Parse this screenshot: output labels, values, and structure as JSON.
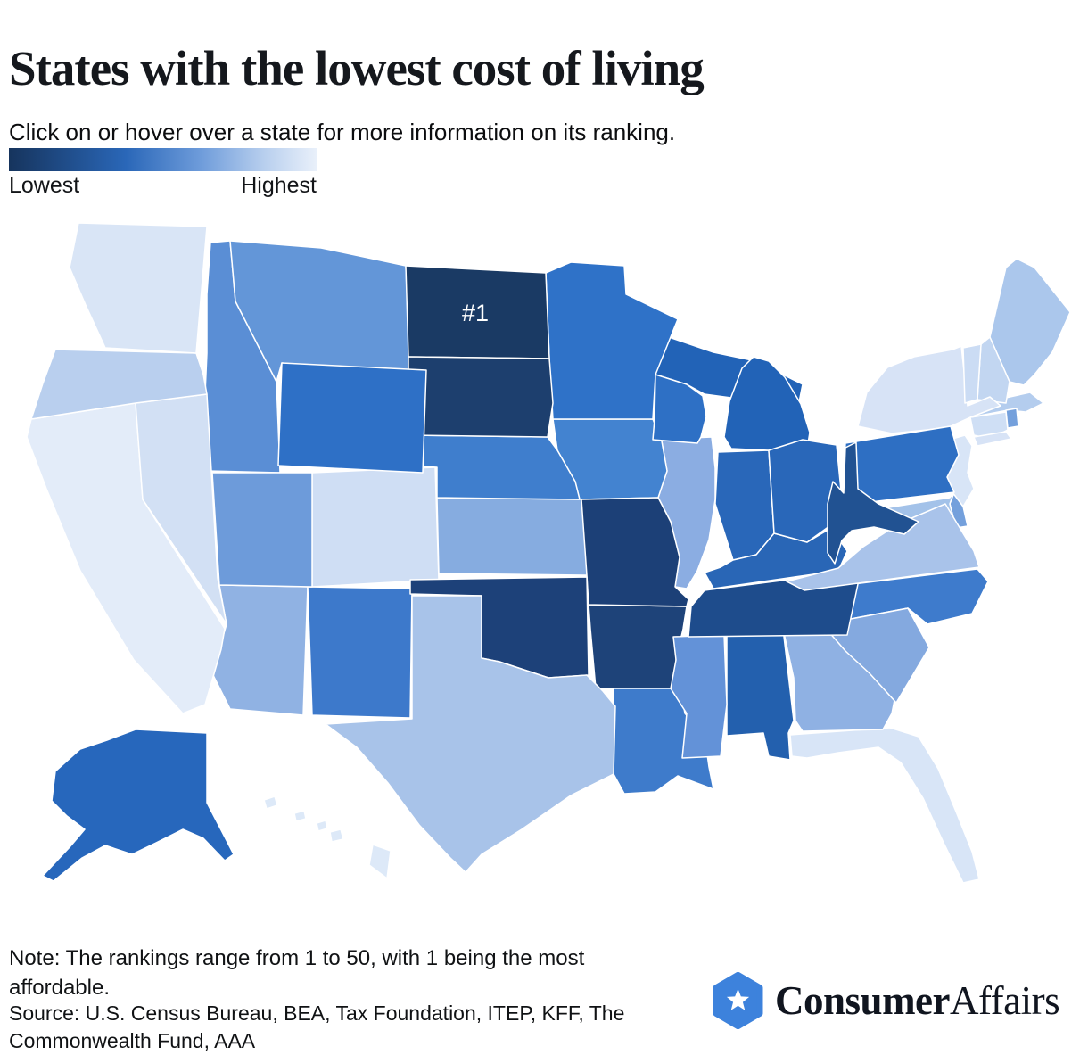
{
  "header": {
    "title": "States with the lowest cost of living",
    "subtitle": "Click on or hover over a state for more information on its ranking."
  },
  "legend": {
    "low_label": "Lowest",
    "high_label": "Highest",
    "gradient_stops": [
      "#16345d",
      "#2a67b8",
      "#6d9bda",
      "#b8cfee",
      "#e9f0fa"
    ]
  },
  "chart_data": {
    "type": "heatmap",
    "subtype": "us_state_choropleth",
    "title": "States with the lowest cost of living",
    "scale_note": "Rankings 1-50; darker blue = lower rank (more affordable), lighter = higher rank",
    "legend": {
      "low": "Lowest",
      "high": "Highest"
    },
    "highlight": {
      "state_id": "ND",
      "state_name": "North Dakota",
      "label": "#1",
      "text_color": "#ffffff"
    },
    "stroke_color": "#ffffff",
    "states": [
      {
        "id": "AL",
        "name": "Alabama",
        "fill": "#2360ae"
      },
      {
        "id": "AK",
        "name": "Alaska",
        "fill": "#2767bc"
      },
      {
        "id": "AZ",
        "name": "Arizona",
        "fill": "#90b2e3"
      },
      {
        "id": "AR",
        "name": "Arkansas",
        "fill": "#1e4379"
      },
      {
        "id": "CA",
        "name": "California",
        "fill": "#e3ecf9"
      },
      {
        "id": "CO",
        "name": "Colorado",
        "fill": "#cfdef4"
      },
      {
        "id": "CT",
        "name": "Connecticut",
        "fill": "#cfdff5"
      },
      {
        "id": "DE",
        "name": "Delaware",
        "fill": "#74a0dc"
      },
      {
        "id": "FL",
        "name": "Florida",
        "fill": "#d8e5f7"
      },
      {
        "id": "GA",
        "name": "Georgia",
        "fill": "#8fb1e3"
      },
      {
        "id": "HI",
        "name": "Hawaii",
        "fill": "#dde9f8"
      },
      {
        "id": "ID",
        "name": "Idaho",
        "fill": "#5a8ed5"
      },
      {
        "id": "IL",
        "name": "Illinois",
        "fill": "#8bade2"
      },
      {
        "id": "IN",
        "name": "Indiana",
        "fill": "#2967b9"
      },
      {
        "id": "IA",
        "name": "Iowa",
        "fill": "#4383d0"
      },
      {
        "id": "KS",
        "name": "Kansas",
        "fill": "#86ace0"
      },
      {
        "id": "KY",
        "name": "Kentucky",
        "fill": "#2966b6"
      },
      {
        "id": "LA",
        "name": "Louisiana",
        "fill": "#3e7bcb"
      },
      {
        "id": "ME",
        "name": "Maine",
        "fill": "#abc7ec"
      },
      {
        "id": "MD",
        "name": "Maryland",
        "fill": "#a3c2e9"
      },
      {
        "id": "MA",
        "name": "Massachusetts",
        "fill": "#b4cdee"
      },
      {
        "id": "MI",
        "name": "Michigan",
        "fill": "#2263b7"
      },
      {
        "id": "MN",
        "name": "Minnesota",
        "fill": "#2f72c8"
      },
      {
        "id": "MS",
        "name": "Mississippi",
        "fill": "#6392d8"
      },
      {
        "id": "MO",
        "name": "Missouri",
        "fill": "#1c4077"
      },
      {
        "id": "MT",
        "name": "Montana",
        "fill": "#6396d8"
      },
      {
        "id": "NE",
        "name": "Nebraska",
        "fill": "#3f7ecd"
      },
      {
        "id": "NV",
        "name": "Nevada",
        "fill": "#d2e0f4"
      },
      {
        "id": "NH",
        "name": "New Hampshire",
        "fill": "#c2d6f1"
      },
      {
        "id": "NJ",
        "name": "New Jersey",
        "fill": "#d8e5f7"
      },
      {
        "id": "NM",
        "name": "New Mexico",
        "fill": "#3d79cb"
      },
      {
        "id": "NY",
        "name": "New York",
        "fill": "#d7e3f6"
      },
      {
        "id": "NC",
        "name": "North Carolina",
        "fill": "#3e7bcc"
      },
      {
        "id": "ND",
        "name": "North Dakota",
        "fill": "#1a3a64",
        "rank_label": "#1"
      },
      {
        "id": "OH",
        "name": "Ohio",
        "fill": "#2967b9"
      },
      {
        "id": "OK",
        "name": "Oklahoma",
        "fill": "#1d4179"
      },
      {
        "id": "OR",
        "name": "Oregon",
        "fill": "#b9cfee"
      },
      {
        "id": "PA",
        "name": "Pennsylvania",
        "fill": "#2e6fc3"
      },
      {
        "id": "RI",
        "name": "Rhode Island",
        "fill": "#74a0dc"
      },
      {
        "id": "SC",
        "name": "South Carolina",
        "fill": "#84a9df"
      },
      {
        "id": "SD",
        "name": "South Dakota",
        "fill": "#1d3f6e"
      },
      {
        "id": "TN",
        "name": "Tennessee",
        "fill": "#1e4c8c"
      },
      {
        "id": "TX",
        "name": "Texas",
        "fill": "#a8c3e9"
      },
      {
        "id": "UT",
        "name": "Utah",
        "fill": "#6d9bda"
      },
      {
        "id": "VT",
        "name": "Vermont",
        "fill": "#cbdcf4"
      },
      {
        "id": "VA",
        "name": "Virginia",
        "fill": "#a9c3ea"
      },
      {
        "id": "WA",
        "name": "Washington",
        "fill": "#d9e5f6"
      },
      {
        "id": "WV",
        "name": "West Virginia",
        "fill": "#215292"
      },
      {
        "id": "WI",
        "name": "Wisconsin",
        "fill": "#2e70c5"
      },
      {
        "id": "WY",
        "name": "Wyoming",
        "fill": "#2e70c6"
      }
    ]
  },
  "footer": {
    "note": "Note: The rankings range from 1 to 50, with 1 being the most affordable.",
    "source": "Source: U.S. Census Bureau, BEA, Tax Foundation, ITEP, KFF, The Commonwealth Fund, AAA",
    "logo": {
      "bold_text": "Consumer",
      "light_text": "Affairs",
      "hex_color": "#3d82dc",
      "star_color": "#ffffff"
    }
  }
}
